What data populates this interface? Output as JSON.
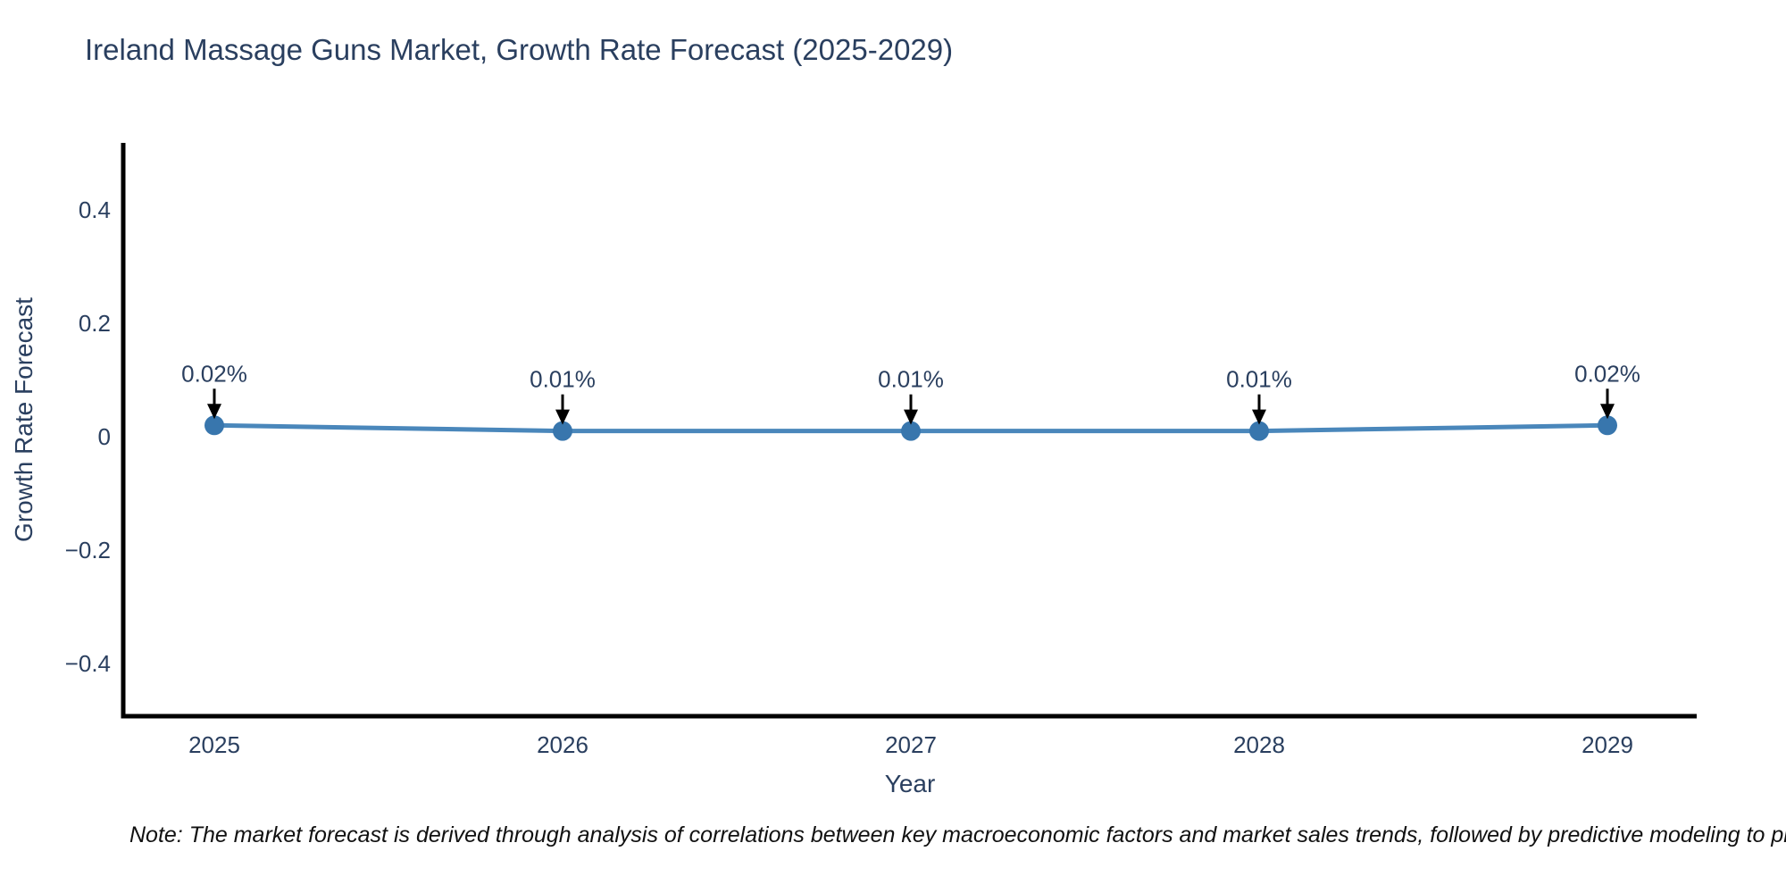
{
  "page": {
    "note": "Note: The market forecast is derived through analysis of correlations between key macroeconomic factors and market sales trends, followed by predictive modeling to project future sales performance"
  },
  "chart_data": {
    "type": "line",
    "title": "Ireland Massage Guns Market, Growth Rate Forecast (2025-2029)",
    "categories": [
      "2025",
      "2026",
      "2027",
      "2028",
      "2029"
    ],
    "series": [
      {
        "name": "Growth Rate Forecast",
        "values": [
          0.02,
          0.01,
          0.01,
          0.01,
          0.02
        ]
      }
    ],
    "point_labels": [
      "0.02%",
      "0.01%",
      "0.01%",
      "0.01%",
      "0.02%"
    ],
    "xlabel": "Year",
    "ylabel": "Growth Rate Forecast",
    "yticks": [
      0.4,
      0.2,
      0,
      -0.2,
      -0.4
    ],
    "ytick_labels": [
      "0.4",
      "0.2",
      "0",
      "−0.2",
      "−0.4"
    ],
    "ylim": [
      -0.49,
      0.52
    ],
    "grid": false,
    "legend": "none",
    "line_color": "#4a87bb",
    "marker_color": "#3876ad",
    "axis_color": "#000000",
    "text_color": "#2a3f5f",
    "arrow_color": "#000000"
  }
}
